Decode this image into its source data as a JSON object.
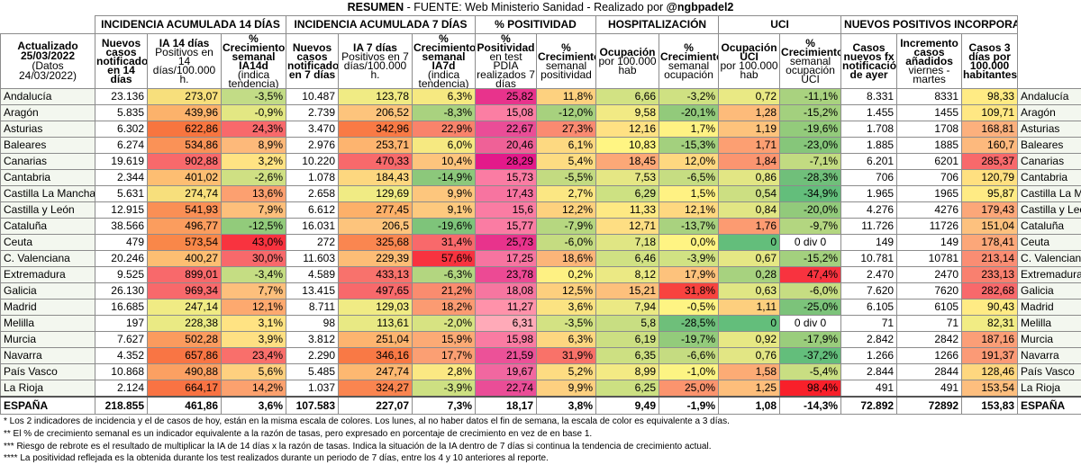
{
  "title": {
    "bold": "RESUMEN",
    "rest": " - FUENTE: Web Ministerio Sanidad  - Realizado por ",
    "author": "@ngbpadel2"
  },
  "groups": [
    "INCIDENCIA ACUMULADA 14 DÍAS",
    "INCIDENCIA ACUMULADA 7 DÍAS",
    "% POSITIVIDAD",
    "HOSPITALIZACIÓN",
    "UCI",
    "NUEVOS POSITIVOS INCORPORADOS"
  ],
  "updated": {
    "line1": "Actualizado 25/03/2022",
    "line2": "(Datos 24/03/2022)"
  },
  "headers": [
    {
      "main": "Nuevos casos notificados en 14 días",
      "sub": ""
    },
    {
      "main": "IA 14 días",
      "sub": "Positivos en 14 días/100.000 h."
    },
    {
      "main": "% Crecimiento semanal IA14d",
      "sub": "(indica tendencia)"
    },
    {
      "main": "Nuevos casos notificados en 7 días",
      "sub": ""
    },
    {
      "main": "IA 7 días",
      "sub": "Positivos en 7 días/100.000 h."
    },
    {
      "main": "% Crecimiento semanal IA7d",
      "sub": "(indica tendencia)"
    },
    {
      "main": "% Positividad",
      "sub": "en test PDIA realizados 7 días"
    },
    {
      "main": "% Crecimiento",
      "sub": "semanal positividad"
    },
    {
      "main": "Ocupación",
      "sub": "por 100.000 hab"
    },
    {
      "main": "% Crecimiento",
      "sub": "semanal ocupación"
    },
    {
      "main": "Ocupación UCI",
      "sub": "por 100.000 hab"
    },
    {
      "main": "% Crecimiento",
      "sub": "semanal ocupación UCI"
    },
    {
      "main": "Casos nuevos fx notificación de ayer",
      "sub": ""
    },
    {
      "main": "Incremento casos añadidos",
      "sub": "viernes - martes"
    },
    {
      "main": "Casos 3 días por 100.000 habitantes",
      "sub": ""
    }
  ],
  "rows": [
    {
      "name": "Andalucía",
      "v": [
        "23.136",
        "273,07",
        "-3,5%",
        "10.487",
        "123,78",
        "6,3%",
        "25,82",
        "11,8%",
        "6,66",
        "-3,2%",
        "0,72",
        "-11,1%",
        "8.331",
        "8331",
        "98,33"
      ],
      "c": [
        "#ffffff",
        "#f7df7c",
        "#c2dc86",
        "#ffffff",
        "#f0eb84",
        "#f6e981",
        "#e8338c",
        "#fdd17f",
        "#d2e283",
        "#cfe182",
        "#e9e984",
        "#a9d27f",
        "#ffffff",
        "#ffffff",
        "#ffeb84"
      ]
    },
    {
      "name": "Aragón",
      "v": [
        "5.835",
        "439,96",
        "-0,9%",
        "2.739",
        "206,52",
        "-8,3%",
        "15,08",
        "-12,0%",
        "9,58",
        "-20,1%",
        "1,28",
        "-15,2%",
        "1.455",
        "1455",
        "109,71"
      ],
      "c": [
        "#ffffff",
        "#fcb26b",
        "#e3e783",
        "#ffffff",
        "#fdc47c",
        "#a9d27f",
        "#fb7ea3",
        "#a7d17e",
        "#f1ea84",
        "#92ca7b",
        "#fdbb7a",
        "#a3d07e",
        "#ffffff",
        "#ffffff",
        "#ffe783"
      ]
    },
    {
      "name": "Asturias",
      "v": [
        "6.302",
        "622,86",
        "24,3%",
        "3.470",
        "342,96",
        "22,9%",
        "22,67",
        "27,3%",
        "12,16",
        "1,7%",
        "1,19",
        "-19,6%",
        "1.708",
        "1708",
        "168,81"
      ],
      "c": [
        "#ffffff",
        "#f8753f",
        "#f8696b",
        "#ffffff",
        "#f97a45",
        "#f9836b",
        "#ea4d97",
        "#fa8a71",
        "#ffe183",
        "#fff283",
        "#fdc37c",
        "#93cb7b",
        "#ffffff",
        "#ffffff",
        "#fcb07d"
      ]
    },
    {
      "name": "Baleares",
      "v": [
        "6.274",
        "534,86",
        "8,9%",
        "2.976",
        "253,71",
        "6,0%",
        "20,46",
        "6,1%",
        "10,83",
        "-15,3%",
        "1,71",
        "-23,0%",
        "1.885",
        "1885",
        "160,7"
      ],
      "c": [
        "#ffffff",
        "#fa9257",
        "#fdb97a",
        "#ffffff",
        "#fdb46f",
        "#f6e981",
        "#ef6197",
        "#fdd981",
        "#fff583",
        "#a3d07e",
        "#fc9f72",
        "#86c67a",
        "#ffffff",
        "#ffffff",
        "#fdb97d"
      ]
    },
    {
      "name": "Canarias",
      "v": [
        "19.619",
        "902,88",
        "3,2%",
        "10.220",
        "470,33",
        "10,4%",
        "28,29",
        "5,4%",
        "18,45",
        "12,0%",
        "1,84",
        "-7,1%",
        "6.201",
        "6201",
        "285,37"
      ],
      "c": [
        "#ffffff",
        "#f8696b",
        "#ffe383",
        "#ffffff",
        "#f8696b",
        "#fdc47d",
        "#e3198a",
        "#fddc82",
        "#fca877",
        "#fed880",
        "#fb9570",
        "#c2db81",
        "#ffffff",
        "#ffffff",
        "#f8696b"
      ]
    },
    {
      "name": "Cantabria",
      "v": [
        "2.344",
        "401,02",
        "-2,6%",
        "1.078",
        "184,43",
        "-14,9%",
        "15,73",
        "-5,5%",
        "7,53",
        "-6,5%",
        "0,86",
        "-28,3%",
        "706",
        "706",
        "120,79"
      ],
      "c": [
        "#ffffff",
        "#fdbe72",
        "#cfe083",
        "#ffffff",
        "#fdd77f",
        "#8cc87b",
        "#fa7ca3",
        "#c3db81",
        "#e5e784",
        "#c6dd82",
        "#e2e684",
        "#70bf7a",
        "#ffffff",
        "#ffffff",
        "#ffe080"
      ]
    },
    {
      "name": "Castilla La Mancha",
      "v": [
        "5.631",
        "274,74",
        "13,6%",
        "2.658",
        "129,69",
        "9,9%",
        "17,43",
        "2,7%",
        "6,29",
        "1,5%",
        "0,54",
        "-34,9%",
        "1.965",
        "1965",
        "95,87"
      ],
      "c": [
        "#ffffff",
        "#f7df7c",
        "#fca070",
        "#ffffff",
        "#f0eb84",
        "#fdc67d",
        "#f774a0",
        "#fbe783",
        "#cde182",
        "#fff283",
        "#ccdf82",
        "#63be7b",
        "#ffffff",
        "#ffffff",
        "#ffeb84"
      ]
    },
    {
      "name": "Castilla y León",
      "v": [
        "12.915",
        "541,93",
        "7,9%",
        "6.612",
        "277,45",
        "9,1%",
        "15,6",
        "12,2%",
        "11,33",
        "12,1%",
        "0,84",
        "-20,0%",
        "4.276",
        "4276",
        "179,43"
      ],
      "c": [
        "#ffffff",
        "#fa8f55",
        "#fdbf7b",
        "#ffffff",
        "#fdb069",
        "#fdc97e",
        "#fa7ca3",
        "#fdd17e",
        "#fee983",
        "#fed880",
        "#e1e684",
        "#92ca7b",
        "#ffffff",
        "#ffffff",
        "#fca779"
      ]
    },
    {
      "name": "Cataluña",
      "v": [
        "38.566",
        "496,77",
        "-12,5%",
        "16.031",
        "206,5",
        "-19,6%",
        "15,77",
        "-7,9%",
        "12,71",
        "-13,7%",
        "1,76",
        "-9,7%",
        "11.726",
        "11726",
        "151,04"
      ],
      "c": [
        "#ffffff",
        "#fb9d5e",
        "#92cb7b",
        "#ffffff",
        "#fdc47c",
        "#7ec47a",
        "#fa7ca3",
        "#b6d780",
        "#fede83",
        "#a9d27f",
        "#fc9b71",
        "#b3d680",
        "#ffffff",
        "#ffffff",
        "#fdc17e"
      ]
    },
    {
      "name": "Ceuta",
      "v": [
        "479",
        "573,54",
        "43,0%",
        "272",
        "325,68",
        "31,4%",
        "25,73",
        "-6,0%",
        "7,18",
        "0,0%",
        "0",
        "0 div 0",
        "149",
        "149",
        "178,41"
      ],
      "c": [
        "#ffffff",
        "#f98749",
        "#f8333f",
        "#ffffff",
        "#fa8650",
        "#f8696b",
        "#e8338c",
        "#c5dc81",
        "#e0e684",
        "#fff483",
        "#63be7b",
        "#ffffff",
        "#ffffff",
        "#ffffff",
        "#fca779"
      ]
    },
    {
      "name": "C. Valenciana",
      "v": [
        "20.246",
        "400,27",
        "30,0%",
        "11.603",
        "229,39",
        "57,6%",
        "17,25",
        "18,6%",
        "6,46",
        "-3,9%",
        "0,67",
        "-15,2%",
        "10.781",
        "10781",
        "213,14"
      ],
      "c": [
        "#ffffff",
        "#fdbe72",
        "#f8696b",
        "#ffffff",
        "#fdbd76",
        "#f8333f",
        "#f774a0",
        "#fcb579",
        "#d0e183",
        "#d1e283",
        "#e5e784",
        "#a3d07e",
        "#ffffff",
        "#ffffff",
        "#fa8d73"
      ]
    },
    {
      "name": "Extremadura",
      "v": [
        "9.525",
        "899,01",
        "-3,4%",
        "4.589",
        "433,13",
        "-6,3%",
        "23,78",
        "0,2%",
        "8,12",
        "17,9%",
        "0,28",
        "47,4%",
        "2.470",
        "2470",
        "233,13"
      ],
      "c": [
        "#ffffff",
        "#f8696b",
        "#c5dd83",
        "#ffffff",
        "#f8726c",
        "#b3d680",
        "#ec4a94",
        "#fef183",
        "#ebe984",
        "#fdc27c",
        "#a7d27f",
        "#f8333f",
        "#ffffff",
        "#ffffff",
        "#f9806f"
      ]
    },
    {
      "name": "Galicia",
      "v": [
        "26.130",
        "969,34",
        "7,7%",
        "13.415",
        "497,65",
        "21,2%",
        "18,08",
        "12,5%",
        "15,21",
        "31,8%",
        "0,63",
        "-6,0%",
        "7.620",
        "7620",
        "282,68"
      ],
      "c": [
        "#ffffff",
        "#f8696b",
        "#fdbf7c",
        "#ffffff",
        "#f8696b",
        "#fa8c6f",
        "#f676a0",
        "#fdcf7e",
        "#fdc07c",
        "#f8433f",
        "#e0e684",
        "#c6dd82",
        "#ffffff",
        "#ffffff",
        "#f8696b"
      ]
    },
    {
      "name": "Madrid",
      "v": [
        "16.685",
        "247,14",
        "12,1%",
        "8.711",
        "129,03",
        "18,2%",
        "11,27",
        "3,6%",
        "7,94",
        "-0,5%",
        "1,11",
        "-25,0%",
        "6.105",
        "6105",
        "90,43"
      ],
      "c": [
        "#ffffff",
        "#f0eb84",
        "#fda96f",
        "#ffffff",
        "#f0eb84",
        "#fb9b72",
        "#ff92aa",
        "#fbe382",
        "#ebe984",
        "#fef483",
        "#fdcf7e",
        "#7cc37a",
        "#ffffff",
        "#ffffff",
        "#ffeb84"
      ]
    },
    {
      "name": "Melilla",
      "v": [
        "197",
        "228,38",
        "3,1%",
        "98",
        "113,61",
        "-2,0%",
        "6,31",
        "-3,5%",
        "5,8",
        "-28,5%",
        "0",
        "0 div 0",
        "71",
        "71",
        "82,31"
      ],
      "c": [
        "#ffffff",
        "#eaea84",
        "#ffe383",
        "#ffffff",
        "#e8e984",
        "#d7e382",
        "#ffaab8",
        "#d3e283",
        "#c8de82",
        "#6ebf7a",
        "#63be7b",
        "#ffffff",
        "#ffffff",
        "#ffffff",
        "#f1ec84"
      ]
    },
    {
      "name": "Murcia",
      "v": [
        "7.627",
        "502,28",
        "3,9%",
        "3.812",
        "251,04",
        "15,9%",
        "15,98",
        "6,3%",
        "6,19",
        "-19,7%",
        "0,92",
        "-17,9%",
        "2.842",
        "2842",
        "187,16"
      ],
      "c": [
        "#ffffff",
        "#fb9b5e",
        "#fee083",
        "#ffffff",
        "#fdb46f",
        "#fcaa75",
        "#fa7ba2",
        "#fdd780",
        "#ccdf82",
        "#93cb7b",
        "#e7e884",
        "#9acd7c",
        "#ffffff",
        "#ffffff",
        "#fb9e77"
      ]
    },
    {
      "name": "Navarra",
      "v": [
        "4.352",
        "657,86",
        "23,4%",
        "2.290",
        "346,16",
        "17,7%",
        "21,59",
        "31,9%",
        "6,35",
        "-6,6%",
        "0,76",
        "-37,2%",
        "1.266",
        "1266",
        "191,37"
      ],
      "c": [
        "#ffffff",
        "#f97544",
        "#f96f6b",
        "#ffffff",
        "#f97945",
        "#fb9f73",
        "#ec5198",
        "#f97269",
        "#cde082",
        "#c5dc81",
        "#e2e684",
        "#63be7b",
        "#ffffff",
        "#ffffff",
        "#fb9a76"
      ]
    },
    {
      "name": "País Vasco",
      "v": [
        "10.868",
        "490,88",
        "5,6%",
        "5.485",
        "247,74",
        "2,8%",
        "19,67",
        "5,2%",
        "8,99",
        "-1,0%",
        "1,58",
        "-5,4%",
        "2.844",
        "2844",
        "128,46"
      ],
      "c": [
        "#ffffff",
        "#fba062",
        "#fed07f",
        "#ffffff",
        "#fdb871",
        "#fbe883",
        "#f167a0",
        "#fddc82",
        "#f3ea84",
        "#fcf483",
        "#fcab75",
        "#c9de82",
        "#ffffff",
        "#ffffff",
        "#fed77f"
      ]
    },
    {
      "name": "La Rioja",
      "v": [
        "2.124",
        "664,17",
        "14,2%",
        "1.037",
        "324,27",
        "-3,9%",
        "22,74",
        "9,9%",
        "6,25",
        "25,0%",
        "1,25",
        "98,4%",
        "491",
        "491",
        "153,54"
      ],
      "c": [
        "#ffffff",
        "#f97343",
        "#fca16e",
        "#ffffff",
        "#fa8550",
        "#cde082",
        "#ea4d97",
        "#fdd080",
        "#cce082",
        "#fb946e",
        "#fdbe7b",
        "#f8202a",
        "#ffffff",
        "#ffffff",
        "#fdbe7e"
      ]
    }
  ],
  "total": {
    "name": "ESPAÑA",
    "v": [
      "218.855",
      "461,86",
      "3,6%",
      "107.583",
      "227,07",
      "7,3%",
      "18,17",
      "3,8%",
      "9,49",
      "-1,9%",
      "1,08",
      "-14,3%",
      "72.892",
      "72892",
      "153,83"
    ]
  },
  "notes": [
    "* Los 2 indicadores de incidencia y el de casos de hoy, están en la misma escala de colores. Los lunes, al no haber datos el fin de semana, la escala de color es equivalente a 3 días.",
    "** El % de crecimiento semanal es un indicador equivalente a la razón de tasas, pero expresado en porcentaje de crecimiento en vez de en base 1.",
    "*** Riesgo de rebrote es el resultado de multiplicar la IA de 14 días x la razón de tasas. Indica la situación de la IA dentro de 7 días si continua la tendencia de crecimiento actual.",
    "**** La positividad reflejada es la obtenida durante los test realizados durante un periodo de 7 días, entre los 4 y 10 anteriores al reporte."
  ]
}
